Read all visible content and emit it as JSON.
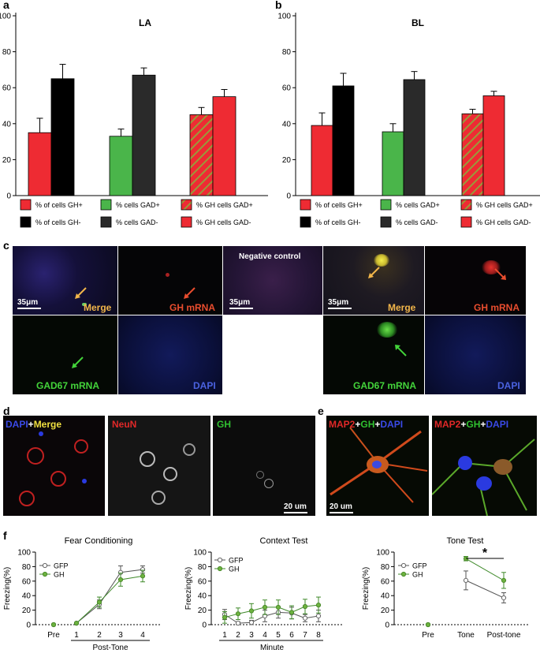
{
  "panels": {
    "a": "a",
    "b": "b",
    "c": "c",
    "d": "d",
    "e": "e",
    "f": "f"
  },
  "colors": {
    "red": "#ee2b33",
    "black": "#000000",
    "green": "#4ab54a",
    "darkgray": "#2a2a2a",
    "gfp_marker": "#ffffff",
    "gh_marker": "#6db33f"
  },
  "bar_legend": [
    {
      "label": "% of cells GH+",
      "color": "#ee2b33",
      "hatch": false
    },
    {
      "label": "% cells GAD+",
      "color": "#4ab54a",
      "hatch": false
    },
    {
      "label": "% GH cells GAD+",
      "color": "#ee2b33",
      "hatch": true
    },
    {
      "label": "% of cells GH-",
      "color": "#000000",
      "hatch": false
    },
    {
      "label": "% cells GAD-",
      "color": "#2a2a2a",
      "hatch": false
    },
    {
      "label": "% GH cells GAD-",
      "color": "#ee2b33",
      "hatch": false
    }
  ],
  "panel_c": {
    "negative_control": "Negative control",
    "scale_bar": "35μm",
    "merge": "Merge",
    "gh_mrna": "GH mRNA",
    "gad67_mrna": "GAD67 mRNA",
    "dapi": "DAPI"
  },
  "panel_d": {
    "dapi": "DAPI",
    "plus1": "+",
    "merge": "Merge",
    "neun": "NeuN",
    "gh": "GH",
    "scale_bar": "20 um"
  },
  "panel_e": {
    "map2": "MAP2",
    "plus1": "+",
    "gh": "GH",
    "plus2": "+",
    "dapi": "DAPI",
    "scale_bar": "20 um"
  },
  "chart_data": [
    {
      "type": "bar",
      "panel": "a",
      "title": "LA",
      "ylim": [
        0,
        100
      ],
      "yticks": [
        0,
        20,
        40,
        60,
        80,
        100
      ],
      "groups": [
        {
          "bars": [
            {
              "series": "% of cells GH+",
              "value": 35,
              "err": 8
            },
            {
              "series": "% of cells GH-",
              "value": 65,
              "err": 8
            }
          ]
        },
        {
          "bars": [
            {
              "series": "% cells GAD+",
              "value": 33,
              "err": 4
            },
            {
              "series": "% cells GAD-",
              "value": 67,
              "err": 4
            }
          ]
        },
        {
          "bars": [
            {
              "series": "% GH cells GAD+",
              "value": 45,
              "err": 4
            },
            {
              "series": "% GH cells GAD-",
              "value": 55,
              "err": 4
            }
          ]
        }
      ]
    },
    {
      "type": "bar",
      "panel": "b",
      "title": "BL",
      "ylim": [
        0,
        100
      ],
      "yticks": [
        0,
        20,
        40,
        60,
        80,
        100
      ],
      "groups": [
        {
          "bars": [
            {
              "series": "% of cells GH+",
              "value": 39,
              "err": 7
            },
            {
              "series": "% of cells GH-",
              "value": 61,
              "err": 7
            }
          ]
        },
        {
          "bars": [
            {
              "series": "% cells GAD+",
              "value": 35.5,
              "err": 4.5
            },
            {
              "series": "% cells GAD-",
              "value": 64.5,
              "err": 4.5
            }
          ]
        },
        {
          "bars": [
            {
              "series": "% GH cells GAD+",
              "value": 45.5,
              "err": 2.5
            },
            {
              "series": "% GH cells GAD-",
              "value": 55.5,
              "err": 2.5
            }
          ]
        }
      ]
    },
    {
      "type": "line",
      "panel": "f",
      "title": "Fear Conditioning",
      "ylabel": "Freezing(%)",
      "xlabel": "Post-Tone",
      "ylim": [
        0,
        100
      ],
      "yticks": [
        0,
        20,
        40,
        60,
        80,
        100
      ],
      "categories": [
        "Pre",
        "1",
        "2",
        "3",
        "4"
      ],
      "series": [
        {
          "name": "GFP",
          "values": [
            0,
            2,
            28,
            72,
            76
          ],
          "err": [
            0,
            1,
            6,
            9,
            5
          ]
        },
        {
          "name": "GH",
          "values": [
            0,
            2,
            31,
            62,
            67
          ],
          "err": [
            0,
            1,
            7,
            9,
            8
          ]
        }
      ]
    },
    {
      "type": "line",
      "panel": "f",
      "title": "Context Test",
      "ylabel": "Freezing(%)",
      "xlabel": "Minute",
      "ylim": [
        0,
        100
      ],
      "yticks": [
        0,
        20,
        40,
        60,
        80,
        100
      ],
      "categories": [
        "1",
        "2",
        "3",
        "4",
        "5",
        "6",
        "7",
        "8"
      ],
      "series": [
        {
          "name": "GFP",
          "values": [
            14,
            2,
            3,
            12,
            17,
            16,
            9,
            12
          ],
          "err": [
            7,
            2,
            3,
            8,
            8,
            8,
            5,
            8
          ]
        },
        {
          "name": "GH",
          "values": [
            10,
            15,
            19,
            24,
            24,
            17,
            25,
            27
          ],
          "err": [
            8,
            8,
            10,
            10,
            10,
            9,
            10,
            11
          ]
        }
      ]
    },
    {
      "type": "line",
      "panel": "f",
      "title": "Tone Test",
      "ylabel": "Freezing(%)",
      "significance": "*",
      "ylim": [
        0,
        100
      ],
      "yticks": [
        0,
        20,
        40,
        60,
        80,
        100
      ],
      "categories": [
        "Pre",
        "Tone",
        "Post-tone"
      ],
      "series": [
        {
          "name": "GFP",
          "values": [
            0,
            61,
            37
          ],
          "err": [
            0,
            13,
            7
          ]
        },
        {
          "name": "GH",
          "values": [
            0,
            91,
            61
          ],
          "err": [
            0,
            3,
            11
          ]
        }
      ]
    }
  ]
}
